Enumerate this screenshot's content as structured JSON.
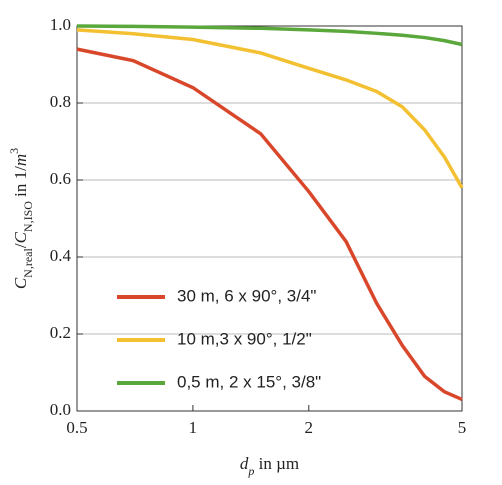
{
  "chart_data": {
    "type": "line",
    "x_scale": "log",
    "grid": true,
    "legend_position": "lower left",
    "xlabel": [
      {
        "text": "d",
        "style": "italic"
      },
      {
        "text": "p",
        "style": "italic-sub"
      },
      {
        "text": " in µm",
        "style": "normal"
      }
    ],
    "ylabel": [
      {
        "text": "C",
        "style": "italic"
      },
      {
        "text": "N,real",
        "style": "sub"
      },
      {
        "text": "/",
        "style": "normal"
      },
      {
        "text": "C",
        "style": "italic"
      },
      {
        "text": "N,ISO",
        "style": "sub"
      },
      {
        "text": " in 1/",
        "style": "normal"
      },
      {
        "text": "m",
        "style": "italic"
      },
      {
        "text": "3",
        "style": "sup"
      }
    ],
    "xlim": [
      0.5,
      5
    ],
    "xticks": [
      0.5,
      1,
      2,
      5
    ],
    "ylim": [
      0,
      1
    ],
    "yticks": [
      {
        "value": 0,
        "label": "0.0"
      },
      0.2,
      0.4,
      0.6,
      0.8,
      {
        "value": 1,
        "label": "1.0"
      }
    ],
    "x": [
      0.5,
      0.7,
      1,
      1.5,
      2,
      2.5,
      3,
      3.5,
      4,
      4.5,
      5
    ],
    "series": [
      {
        "name": "30 m, 6 x 90°, 3/4\"",
        "color": "#d9472b",
        "values": [
          0.94,
          0.91,
          0.84,
          0.72,
          0.57,
          0.44,
          0.28,
          0.17,
          0.09,
          0.05,
          0.03
        ]
      },
      {
        "name": "10 m,3 x 90°, 1/2\"",
        "color": "#f2c030",
        "values": [
          0.99,
          0.98,
          0.965,
          0.93,
          0.89,
          0.86,
          0.83,
          0.79,
          0.73,
          0.66,
          0.58
        ]
      },
      {
        "name": "0,5 m, 2 x 15°, 3/8\"",
        "color": "#5aa83c",
        "values": [
          1.0,
          0.999,
          0.997,
          0.994,
          0.99,
          0.986,
          0.981,
          0.976,
          0.97,
          0.962,
          0.952
        ]
      }
    ]
  }
}
